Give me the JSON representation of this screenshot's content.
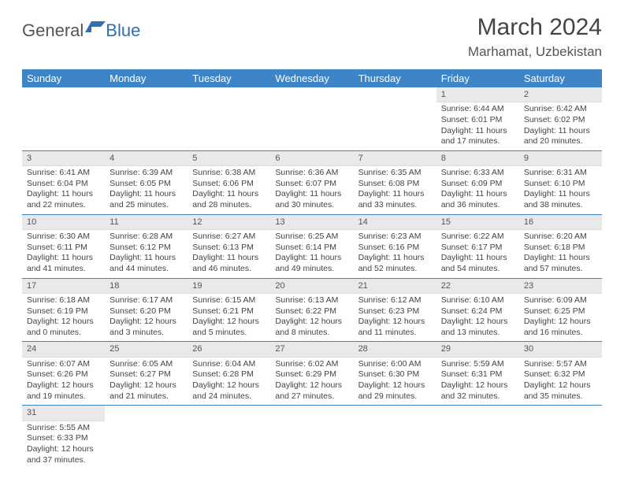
{
  "logo": {
    "general": "General",
    "blue": "Blue"
  },
  "title": {
    "month": "March 2024",
    "location": "Marhamat, Uzbekistan"
  },
  "colors": {
    "header_bg": "#3d85c6",
    "header_text": "#ffffff",
    "daynum_bg": "#e9e9e9",
    "row_border": "#3d85c6",
    "body_text": "#444444"
  },
  "weekdays": [
    "Sunday",
    "Monday",
    "Tuesday",
    "Wednesday",
    "Thursday",
    "Friday",
    "Saturday"
  ],
  "weeks": [
    [
      {
        "num": "",
        "lines": []
      },
      {
        "num": "",
        "lines": []
      },
      {
        "num": "",
        "lines": []
      },
      {
        "num": "",
        "lines": []
      },
      {
        "num": "",
        "lines": []
      },
      {
        "num": "1",
        "lines": [
          "Sunrise: 6:44 AM",
          "Sunset: 6:01 PM",
          "Daylight: 11 hours and 17 minutes."
        ]
      },
      {
        "num": "2",
        "lines": [
          "Sunrise: 6:42 AM",
          "Sunset: 6:02 PM",
          "Daylight: 11 hours and 20 minutes."
        ]
      }
    ],
    [
      {
        "num": "3",
        "lines": [
          "Sunrise: 6:41 AM",
          "Sunset: 6:04 PM",
          "Daylight: 11 hours and 22 minutes."
        ]
      },
      {
        "num": "4",
        "lines": [
          "Sunrise: 6:39 AM",
          "Sunset: 6:05 PM",
          "Daylight: 11 hours and 25 minutes."
        ]
      },
      {
        "num": "5",
        "lines": [
          "Sunrise: 6:38 AM",
          "Sunset: 6:06 PM",
          "Daylight: 11 hours and 28 minutes."
        ]
      },
      {
        "num": "6",
        "lines": [
          "Sunrise: 6:36 AM",
          "Sunset: 6:07 PM",
          "Daylight: 11 hours and 30 minutes."
        ]
      },
      {
        "num": "7",
        "lines": [
          "Sunrise: 6:35 AM",
          "Sunset: 6:08 PM",
          "Daylight: 11 hours and 33 minutes."
        ]
      },
      {
        "num": "8",
        "lines": [
          "Sunrise: 6:33 AM",
          "Sunset: 6:09 PM",
          "Daylight: 11 hours and 36 minutes."
        ]
      },
      {
        "num": "9",
        "lines": [
          "Sunrise: 6:31 AM",
          "Sunset: 6:10 PM",
          "Daylight: 11 hours and 38 minutes."
        ]
      }
    ],
    [
      {
        "num": "10",
        "lines": [
          "Sunrise: 6:30 AM",
          "Sunset: 6:11 PM",
          "Daylight: 11 hours and 41 minutes."
        ]
      },
      {
        "num": "11",
        "lines": [
          "Sunrise: 6:28 AM",
          "Sunset: 6:12 PM",
          "Daylight: 11 hours and 44 minutes."
        ]
      },
      {
        "num": "12",
        "lines": [
          "Sunrise: 6:27 AM",
          "Sunset: 6:13 PM",
          "Daylight: 11 hours and 46 minutes."
        ]
      },
      {
        "num": "13",
        "lines": [
          "Sunrise: 6:25 AM",
          "Sunset: 6:14 PM",
          "Daylight: 11 hours and 49 minutes."
        ]
      },
      {
        "num": "14",
        "lines": [
          "Sunrise: 6:23 AM",
          "Sunset: 6:16 PM",
          "Daylight: 11 hours and 52 minutes."
        ]
      },
      {
        "num": "15",
        "lines": [
          "Sunrise: 6:22 AM",
          "Sunset: 6:17 PM",
          "Daylight: 11 hours and 54 minutes."
        ]
      },
      {
        "num": "16",
        "lines": [
          "Sunrise: 6:20 AM",
          "Sunset: 6:18 PM",
          "Daylight: 11 hours and 57 minutes."
        ]
      }
    ],
    [
      {
        "num": "17",
        "lines": [
          "Sunrise: 6:18 AM",
          "Sunset: 6:19 PM",
          "Daylight: 12 hours and 0 minutes."
        ]
      },
      {
        "num": "18",
        "lines": [
          "Sunrise: 6:17 AM",
          "Sunset: 6:20 PM",
          "Daylight: 12 hours and 3 minutes."
        ]
      },
      {
        "num": "19",
        "lines": [
          "Sunrise: 6:15 AM",
          "Sunset: 6:21 PM",
          "Daylight: 12 hours and 5 minutes."
        ]
      },
      {
        "num": "20",
        "lines": [
          "Sunrise: 6:13 AM",
          "Sunset: 6:22 PM",
          "Daylight: 12 hours and 8 minutes."
        ]
      },
      {
        "num": "21",
        "lines": [
          "Sunrise: 6:12 AM",
          "Sunset: 6:23 PM",
          "Daylight: 12 hours and 11 minutes."
        ]
      },
      {
        "num": "22",
        "lines": [
          "Sunrise: 6:10 AM",
          "Sunset: 6:24 PM",
          "Daylight: 12 hours and 13 minutes."
        ]
      },
      {
        "num": "23",
        "lines": [
          "Sunrise: 6:09 AM",
          "Sunset: 6:25 PM",
          "Daylight: 12 hours and 16 minutes."
        ]
      }
    ],
    [
      {
        "num": "24",
        "lines": [
          "Sunrise: 6:07 AM",
          "Sunset: 6:26 PM",
          "Daylight: 12 hours and 19 minutes."
        ]
      },
      {
        "num": "25",
        "lines": [
          "Sunrise: 6:05 AM",
          "Sunset: 6:27 PM",
          "Daylight: 12 hours and 21 minutes."
        ]
      },
      {
        "num": "26",
        "lines": [
          "Sunrise: 6:04 AM",
          "Sunset: 6:28 PM",
          "Daylight: 12 hours and 24 minutes."
        ]
      },
      {
        "num": "27",
        "lines": [
          "Sunrise: 6:02 AM",
          "Sunset: 6:29 PM",
          "Daylight: 12 hours and 27 minutes."
        ]
      },
      {
        "num": "28",
        "lines": [
          "Sunrise: 6:00 AM",
          "Sunset: 6:30 PM",
          "Daylight: 12 hours and 29 minutes."
        ]
      },
      {
        "num": "29",
        "lines": [
          "Sunrise: 5:59 AM",
          "Sunset: 6:31 PM",
          "Daylight: 12 hours and 32 minutes."
        ]
      },
      {
        "num": "30",
        "lines": [
          "Sunrise: 5:57 AM",
          "Sunset: 6:32 PM",
          "Daylight: 12 hours and 35 minutes."
        ]
      }
    ],
    [
      {
        "num": "31",
        "lines": [
          "Sunrise: 5:55 AM",
          "Sunset: 6:33 PM",
          "Daylight: 12 hours and 37 minutes."
        ]
      },
      {
        "num": "",
        "lines": []
      },
      {
        "num": "",
        "lines": []
      },
      {
        "num": "",
        "lines": []
      },
      {
        "num": "",
        "lines": []
      },
      {
        "num": "",
        "lines": []
      },
      {
        "num": "",
        "lines": []
      }
    ]
  ]
}
